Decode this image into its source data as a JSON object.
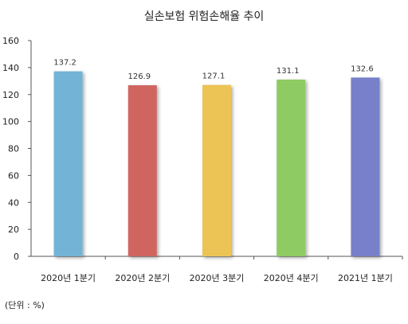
{
  "chart_data": {
    "type": "bar",
    "title": "실손보험 위험손해율 추이",
    "categories": [
      "2020년 1분기",
      "2020년 2분기",
      "2020년 3분기",
      "2020년 4분기",
      "2021년 1분기"
    ],
    "values": [
      137.2,
      126.9,
      127.1,
      131.1,
      132.6
    ],
    "value_labels": [
      "137.2",
      "126.9",
      "127.1",
      "131.1",
      "132.6"
    ],
    "bar_colors": [
      "#72b3d6",
      "#d06560",
      "#ecc456",
      "#8ecb62",
      "#7780c9"
    ],
    "ylim": [
      0,
      160
    ],
    "yticks": [
      "0",
      "20",
      "40",
      "60",
      "80",
      "100",
      "120",
      "140",
      "160"
    ],
    "grid": false,
    "legend": "none",
    "unit_note": "(단위 : %)"
  }
}
